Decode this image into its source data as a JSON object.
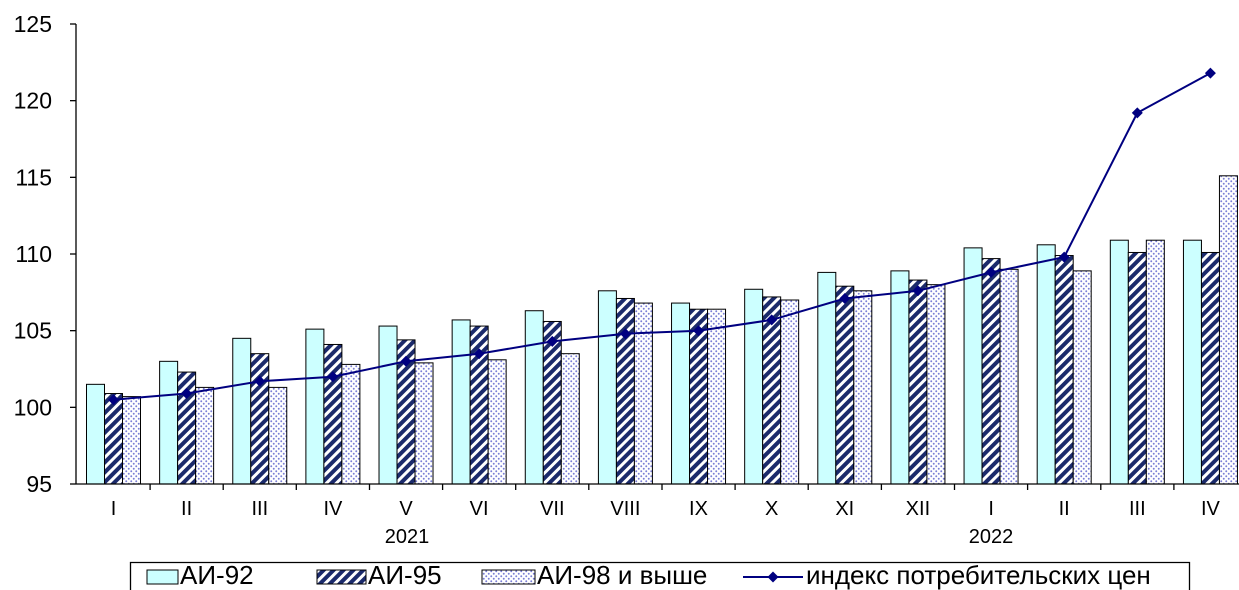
{
  "chart_data": {
    "type": "bar",
    "categories": [
      "I",
      "II",
      "III",
      "IV",
      "V",
      "VI",
      "VII",
      "VIII",
      "IX",
      "X",
      "XI",
      "XII",
      "I",
      "II",
      "III",
      "IV"
    ],
    "category_groups": [
      {
        "label": "2021",
        "count": 12
      },
      {
        "label": "2022",
        "count": 4
      }
    ],
    "series": [
      {
        "name": "АИ-92",
        "type": "bar",
        "color": "#ccffff",
        "values": [
          101.5,
          103.0,
          104.5,
          105.1,
          105.3,
          105.7,
          106.3,
          107.6,
          106.8,
          107.7,
          108.8,
          108.9,
          110.4,
          110.6,
          110.9,
          110.9
        ]
      },
      {
        "name": "АИ-95",
        "type": "bar",
        "color": "#1b2a6b",
        "values": [
          100.9,
          102.3,
          103.5,
          104.1,
          104.4,
          105.3,
          105.6,
          107.1,
          106.4,
          107.2,
          107.9,
          108.3,
          109.7,
          109.9,
          110.1,
          110.1
        ]
      },
      {
        "name": "АИ-98 и выше",
        "type": "bar",
        "color": "#7b7fd6",
        "values": [
          100.7,
          101.3,
          101.3,
          102.8,
          102.9,
          103.1,
          103.5,
          106.8,
          106.4,
          107.0,
          107.6,
          108.0,
          109.0,
          108.9,
          110.9,
          115.1
        ]
      },
      {
        "name": "индекс потребительских цен",
        "type": "line",
        "color": "#000080",
        "values": [
          100.5,
          100.9,
          101.7,
          102.0,
          103.0,
          103.5,
          104.3,
          104.8,
          105.0,
          105.7,
          107.1,
          107.6,
          108.8,
          109.8,
          119.2,
          121.8
        ]
      }
    ],
    "ylim": [
      95,
      125
    ],
    "yticks": [
      95,
      100,
      105,
      110,
      115,
      120,
      125
    ],
    "grid": false,
    "legend": "bottom"
  }
}
